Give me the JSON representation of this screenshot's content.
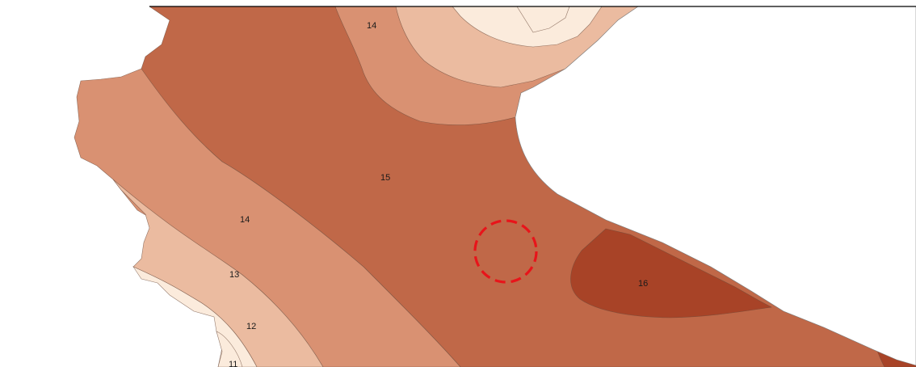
{
  "map": {
    "zones": [
      {
        "id": "z11",
        "label": "11",
        "color": "#fbebdc"
      },
      {
        "id": "z12",
        "label": "12",
        "color": "#fbebdc"
      },
      {
        "id": "z13",
        "label": "13",
        "color": "#ebbba0"
      },
      {
        "id": "z14a",
        "label": "14",
        "color": "#d99172"
      },
      {
        "id": "z14b",
        "label": "14",
        "color": "#d99172"
      },
      {
        "id": "z15",
        "label": "15",
        "color": "#c06848"
      },
      {
        "id": "z16",
        "label": "16",
        "color": "#a84327"
      }
    ],
    "highlight": {
      "color": "#e8141a",
      "style": "dashed-circle"
    }
  }
}
